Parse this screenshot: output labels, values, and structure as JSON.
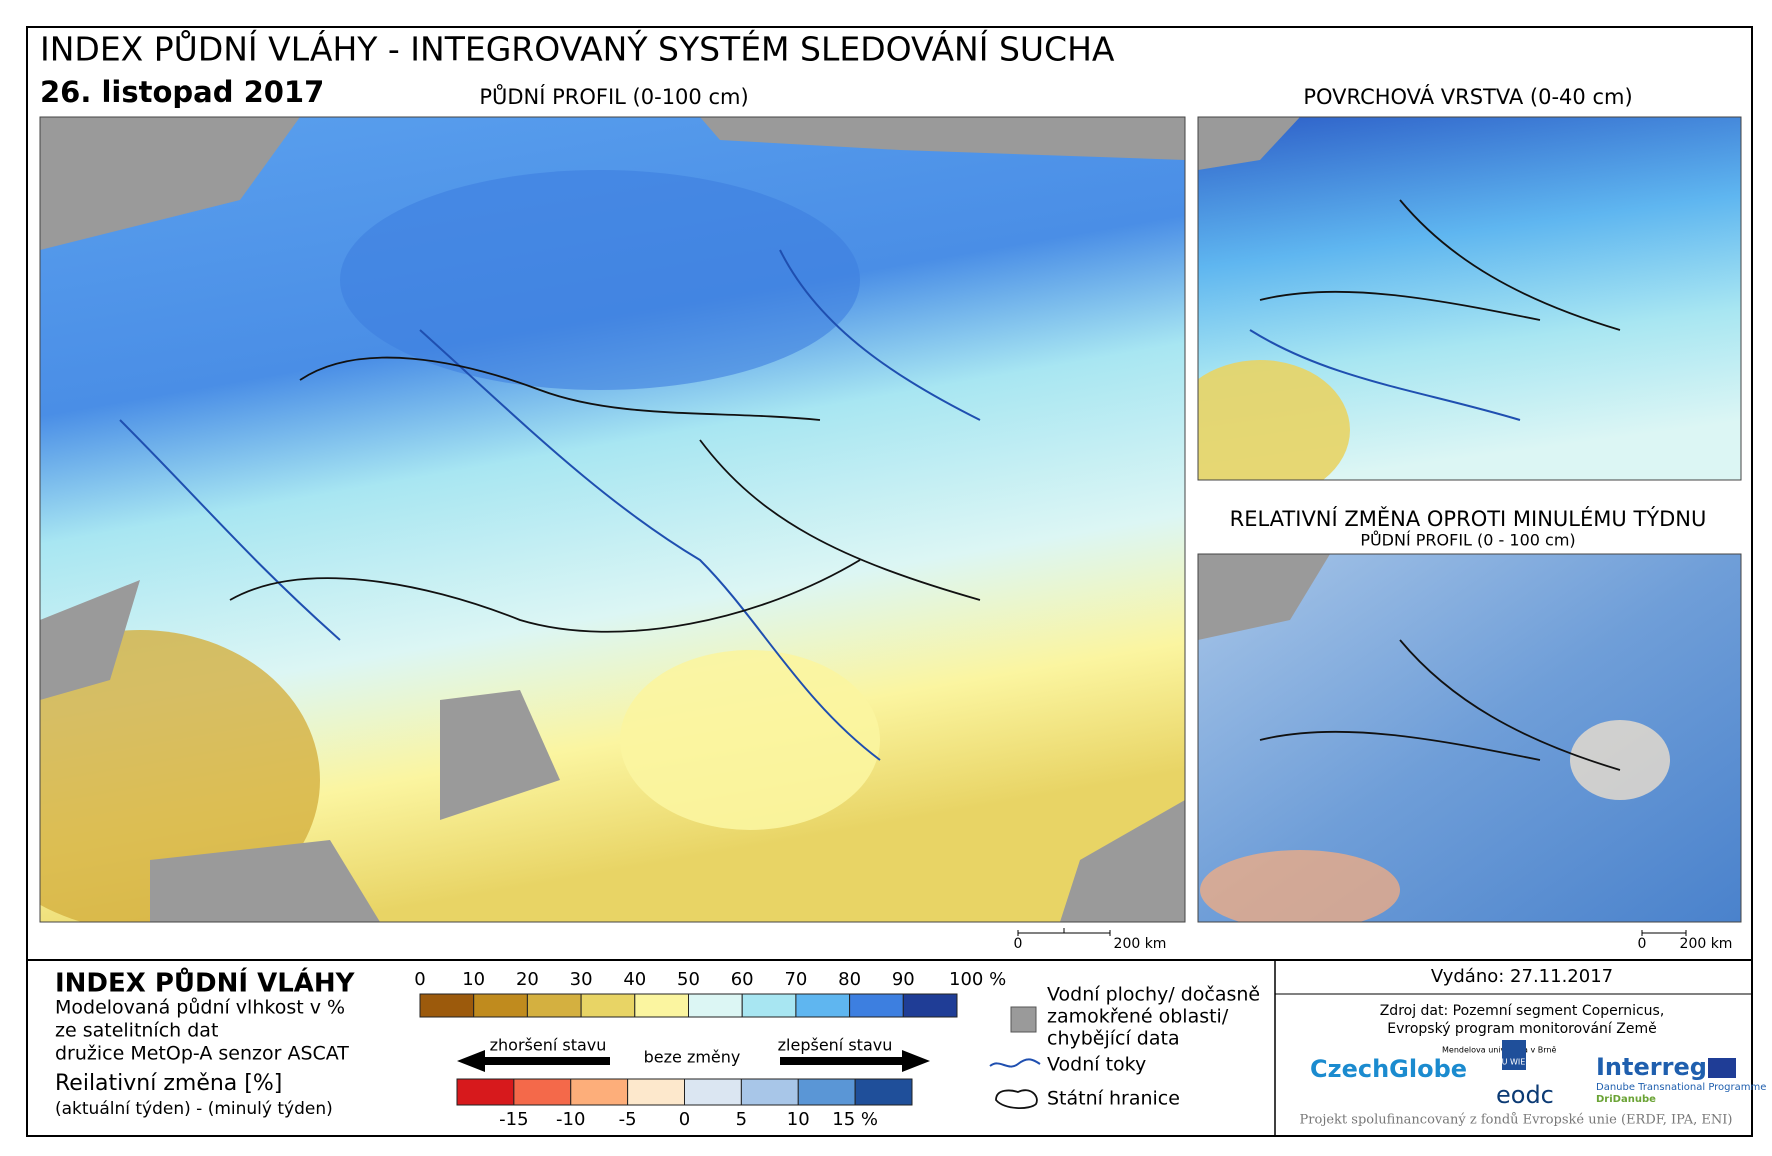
{
  "header": {
    "title": "INDEX PŮDNÍ VLÁHY - INTEGROVANÝ SYSTÉM SLEDOVÁNÍ SUCHA",
    "date": "26. listopad 2017"
  },
  "maps": {
    "main": {
      "title": "PŮDNÍ PROFIL (0-100 cm)",
      "scale": [
        "0",
        "200 km"
      ]
    },
    "surface": {
      "title": "POVRCHOVÁ VRSTVA (0-40 cm)"
    },
    "change": {
      "title": "RELATIVNÍ ZMĚNA OPROTI MINULÉMU TÝDNU",
      "subtitle": "PŮDNÍ PROFIL (0 - 100 cm)",
      "scale": [
        "0",
        "200 km"
      ]
    }
  },
  "legend": {
    "title": "INDEX PŮDNÍ VLÁHY",
    "description": [
      "Modelovaná půdní vlhkost v %",
      "ze satelitních dat",
      "družice MetOp-A senzor ASCAT"
    ],
    "index_scale": {
      "labels": [
        "0",
        "10",
        "20",
        "30",
        "40",
        "50",
        "60",
        "70",
        "80",
        "90",
        "100 %"
      ],
      "colors": [
        "#9c5a0c",
        "#c08b1e",
        "#d4b040",
        "#e8d465",
        "#fbf5a0",
        "#dcf6f4",
        "#a8e6f2",
        "#5fb6f0",
        "#3d7fe0",
        "#1f3d96"
      ]
    },
    "change_title": "Reilativní změna [%]",
    "change_subtitle": "(aktuální týden) - (minulý týden)",
    "arrows": [
      "zhoršení stavu",
      "beze změny",
      "zlepšení stavu"
    ],
    "change_scale": {
      "labels": [
        "-15",
        "-10",
        "-5",
        "0",
        "5",
        "10",
        "15 %"
      ],
      "colors": [
        "#d7191c",
        "#f4694a",
        "#fdae7a",
        "#fde8cc",
        "#dbe6f2",
        "#a8c6e8",
        "#5a96d6",
        "#1f4f9a"
      ]
    },
    "symbols": {
      "water": [
        "Vodní plochy/ dočasně",
        "zamokřené oblasti/",
        "chybějící data"
      ],
      "rivers": "Vodní toky",
      "borders": "Státní hranice"
    }
  },
  "info": {
    "issued": "Vydáno: 27.11.2017",
    "source": [
      "Zdroj dat: Pozemní segment Copernicus,",
      "Evropský program monitorování Země"
    ],
    "logos": [
      "CzechGlobe",
      "Mendelova univerzita v Brně",
      "TU WIEN",
      "eodc",
      "Interreg",
      "Danube Transnational Programme",
      "DriDanube"
    ],
    "footer": "Projekt spolufinancovaný z fondů Evropské unie (ERDF, IPA, ENI)"
  }
}
